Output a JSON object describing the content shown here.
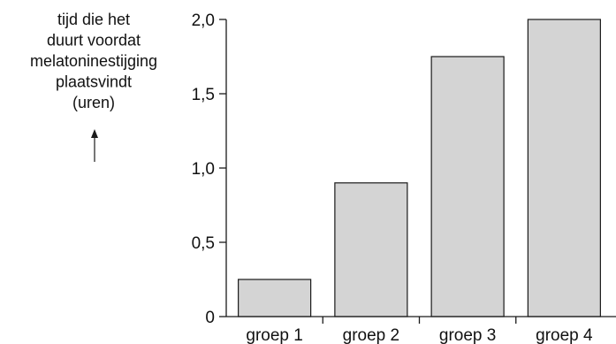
{
  "chart_data": {
    "type": "bar",
    "title": "",
    "xlabel": "",
    "ylabel_lines": [
      "tijd die het",
      "duurt voordat",
      "melatoninestijging",
      "plaatsvindt",
      "(uren)"
    ],
    "categories": [
      "groep 1",
      "groep 2",
      "groep 3",
      "groep 4"
    ],
    "values": [
      0.25,
      0.9,
      1.75,
      2.0
    ],
    "ylim": [
      0,
      2.0
    ],
    "yticks": [
      0,
      0.5,
      1.0,
      1.5,
      2.0
    ],
    "ytick_labels": [
      "0",
      "0,5",
      "1,0",
      "1,5",
      "2,0"
    ],
    "grid": false,
    "legend": "none",
    "colors": {
      "bar_fill": "#d4d4d4",
      "bar_stroke": "#1a1a1a",
      "axis": "#1a1a1a",
      "text": "#111111"
    }
  }
}
